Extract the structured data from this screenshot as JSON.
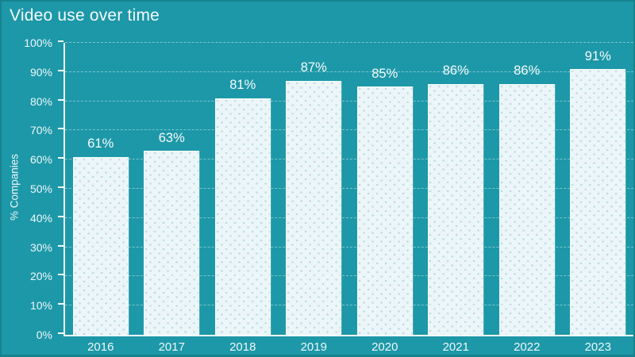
{
  "chart_data": {
    "type": "bar",
    "title": "Video use over time",
    "xlabel": "",
    "ylabel": "% Companies",
    "categories": [
      "2016",
      "2017",
      "2018",
      "2019",
      "2020",
      "2021",
      "2022",
      "2023"
    ],
    "values": [
      61,
      63,
      81,
      87,
      85,
      86,
      86,
      91
    ],
    "bar_labels": [
      "61%",
      "63%",
      "81%",
      "87%",
      "85%",
      "86%",
      "86%",
      "91%"
    ],
    "ylim": [
      0,
      100
    ],
    "y_tick_step": 10,
    "y_tick_labels": [
      "0%",
      "10%",
      "20%",
      "30%",
      "40%",
      "50%",
      "60%",
      "70%",
      "80%",
      "90%",
      "100%"
    ],
    "grid": "horizontal-dashed",
    "legend": "none"
  },
  "colors": {
    "background": "#1d98a8",
    "frame_border": "#17828f",
    "bar_fill": "#ecf5f8",
    "bar_outline": "rgba(250,253,254,0.85)",
    "text": "#f1f9fa",
    "gridline": "rgba(240,250,252,0.45)",
    "axis_line": "#f2f9fa"
  }
}
